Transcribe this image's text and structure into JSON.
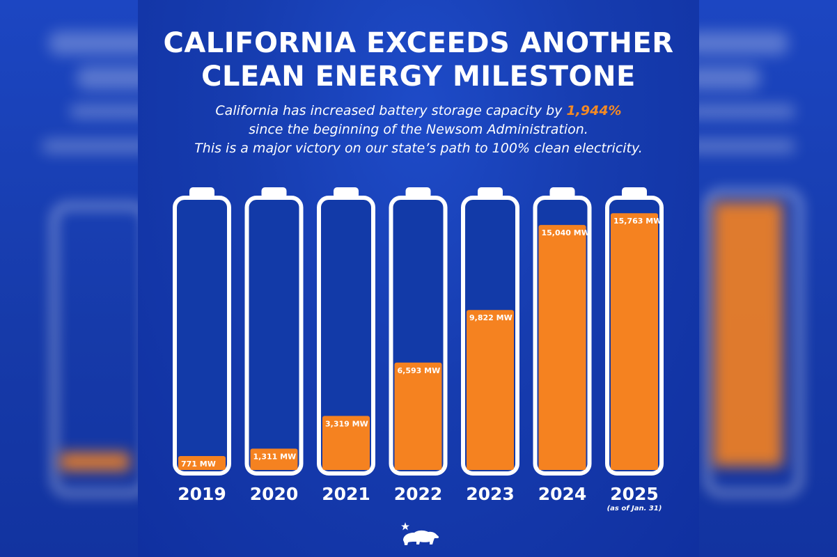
{
  "title_line1": "CALIFORNIA EXCEEDS ANOTHER",
  "title_line2": "CLEAN ENERGY MILESTONE",
  "subtitle_line1_prefix": "California has increased battery storage capacity by",
  "subtitle_highlight": "1,944%",
  "subtitle_line2": "since the beginning of the Newsom Administration.",
  "subtitle_line3": "This is a major victory on our state’s path to 100% clean electricity.",
  "colors": {
    "background": "#163caf",
    "fill": "#f58220",
    "battery": "#ffffff",
    "highlight": "#f58a24"
  },
  "logo_icon": "california-bear-star-icon",
  "chart_data": {
    "type": "bar",
    "categories": [
      "2019",
      "2020",
      "2021",
      "2022",
      "2023",
      "2024",
      "2025"
    ],
    "values": [
      771,
      1311,
      3319,
      6593,
      9822,
      15040,
      15763
    ],
    "value_labels": [
      "771 MW",
      "1,311 MW",
      "3,319 MW",
      "6,593 MW",
      "9,822 MW",
      "15,040 MW",
      "15,763 MW"
    ],
    "unit": "MW",
    "category_notes": [
      "",
      "",
      "",
      "",
      "",
      "",
      "(as of Jan. 31)"
    ],
    "ylim": [
      0,
      16500
    ],
    "grid": false,
    "legend": "none"
  }
}
